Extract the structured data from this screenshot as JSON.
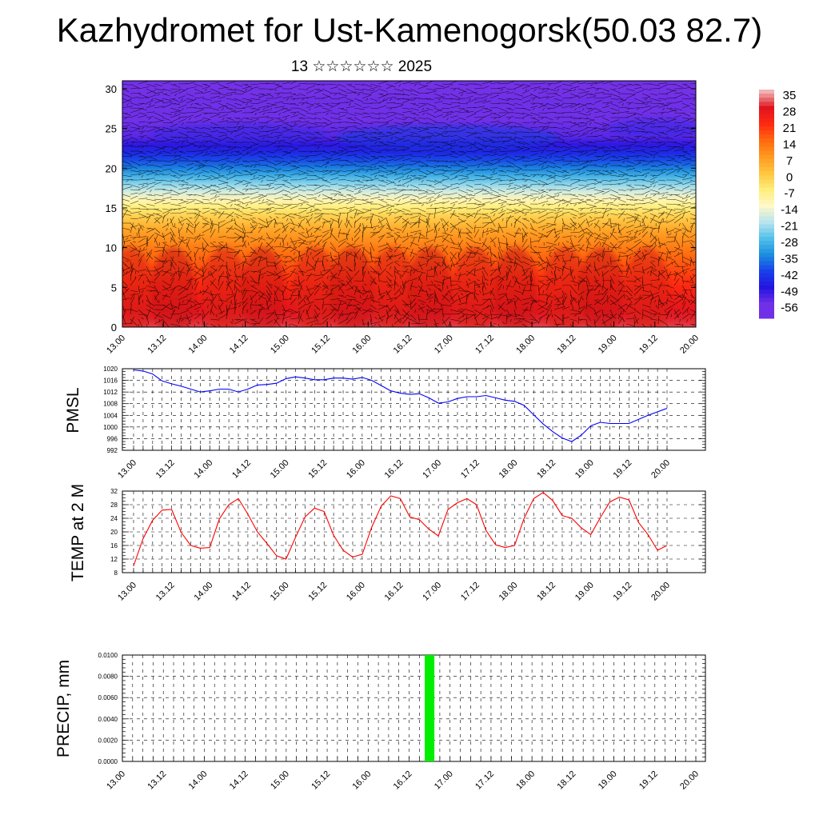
{
  "header": {
    "title": "Kazhydromet for Ust-Kamenogorsk(50.03 82.7)",
    "subtitle": "13 ☆☆☆☆☆☆ 2025"
  },
  "chart_data": [
    {
      "type": "heatmap",
      "title": "",
      "xlabel": "",
      "ylabel": "",
      "x_tick_labels": [
        "13.00",
        "13.12",
        "14.00",
        "14.12",
        "15.00",
        "15.12",
        "16.00",
        "16.12",
        "17.00",
        "17.12",
        "18.00",
        "18.12",
        "19.00",
        "19.12",
        "20.00"
      ],
      "y_ticks": [
        0,
        5,
        10,
        15,
        20,
        25,
        30
      ],
      "ylim": [
        0,
        31
      ],
      "overlay": "wind streamlines",
      "colorbar": {
        "labels": [
          "35",
          "28",
          "21",
          "14",
          "7",
          "0",
          "-7",
          "-14",
          "-21",
          "-28",
          "-35",
          "-42",
          "-49",
          "-56"
        ],
        "colors": [
          "#f0b2b2",
          "#e0141e",
          "#ff2a10",
          "#ff6a10",
          "#ff9a20",
          "#ffc640",
          "#ffee7a",
          "#fff8c8",
          "#b8e4ee",
          "#50c0ea",
          "#1c8cde",
          "#1840ea",
          "#2414e0",
          "#7030e8"
        ]
      },
      "profile_temperature": [
        {
          "h": 0,
          "t": 30
        },
        {
          "h": 3,
          "t": 26
        },
        {
          "h": 6,
          "t": 20
        },
        {
          "h": 9,
          "t": 14
        },
        {
          "h": 12,
          "t": 6
        },
        {
          "h": 14,
          "t": -2
        },
        {
          "h": 15,
          "t": -7
        },
        {
          "h": 16,
          "t": -12
        },
        {
          "h": 18,
          "t": -24
        },
        {
          "h": 20,
          "t": -36
        },
        {
          "h": 22,
          "t": -46
        },
        {
          "h": 24,
          "t": -54
        },
        {
          "h": 26,
          "t": -56
        },
        {
          "h": 28,
          "t": -58
        },
        {
          "h": 31,
          "t": -60
        }
      ]
    },
    {
      "type": "line",
      "title": "",
      "xlabel": "",
      "ylabel": "PMSL",
      "ylim": [
        992,
        1020
      ],
      "y_ticks": [
        992,
        996,
        1000,
        1004,
        1008,
        1012,
        1016,
        1020
      ],
      "x_tick_labels": [
        "13.00",
        "13.12",
        "14.00",
        "14.12",
        "15.00",
        "15.12",
        "16.00",
        "16.12",
        "17.00",
        "17.12",
        "18.00",
        "18.12",
        "19.00",
        "19.12",
        "20.00"
      ],
      "series": [
        {
          "color": "#0000ff",
          "values": [
            1019.6,
            1019.2,
            1018.2,
            1015.8,
            1014.8,
            1014.0,
            1013.0,
            1012.0,
            1012.4,
            1013.0,
            1013.0,
            1012.0,
            1013.0,
            1014.4,
            1014.6,
            1015.0,
            1016.6,
            1017.2,
            1016.8,
            1016.2,
            1016.2,
            1016.8,
            1016.8,
            1016.4,
            1017.0,
            1016.0,
            1014.2,
            1012.4,
            1011.6,
            1011.2,
            1011.4,
            1010.0,
            1008.2,
            1008.6,
            1009.8,
            1010.4,
            1010.4,
            1010.8,
            1010.0,
            1009.2,
            1008.8,
            1007.4,
            1004.2,
            1001.0,
            998.4,
            996.2,
            995.0,
            997.2,
            1000.4,
            1001.6,
            1001.2,
            1001.2,
            1001.2,
            1002.6,
            1004.0,
            1005.2,
            1006.4
          ]
        }
      ]
    },
    {
      "type": "line",
      "title": "",
      "xlabel": "",
      "ylabel": "TEMP at 2 M",
      "ylim": [
        8,
        32
      ],
      "y_ticks": [
        8,
        12,
        16,
        20,
        24,
        28,
        32
      ],
      "x_tick_labels": [
        "13.00",
        "13.12",
        "14.00",
        "14.12",
        "15.00",
        "15.12",
        "16.00",
        "16.12",
        "17.00",
        "17.12",
        "18.00",
        "18.12",
        "19.00",
        "19.12",
        "20.00"
      ],
      "series": [
        {
          "color": "#ff0000",
          "values": [
            10.0,
            18.0,
            23.4,
            26.4,
            26.6,
            19.8,
            16.0,
            15.2,
            15.4,
            23.8,
            28.0,
            29.8,
            25.2,
            20.0,
            16.6,
            13.0,
            12.0,
            18.4,
            24.4,
            27.0,
            26.0,
            19.0,
            14.6,
            12.6,
            13.4,
            21.4,
            27.6,
            30.6,
            29.8,
            24.4,
            23.6,
            20.8,
            18.8,
            26.6,
            28.6,
            29.8,
            28.0,
            20.4,
            16.2,
            15.4,
            16.0,
            24.0,
            29.8,
            31.6,
            29.2,
            24.8,
            24.0,
            21.2,
            19.2,
            24.2,
            28.8,
            30.2,
            29.4,
            22.8,
            19.2,
            14.6,
            16.0
          ]
        }
      ]
    },
    {
      "type": "bar",
      "title": "",
      "xlabel": "",
      "ylabel": "PRECIP, mm",
      "ylim": [
        0,
        0.01
      ],
      "y_tick_labels": [
        "0.0000",
        "0.0020",
        "0.0040",
        "0.0060",
        "0.0080",
        "0.0100"
      ],
      "x_tick_labels": [
        "13.00",
        "13.12",
        "14.00",
        "14.12",
        "15.00",
        "15.12",
        "16.00",
        "16.12",
        "17.00",
        "17.12",
        "18.00",
        "18.12",
        "19.00",
        "19.12",
        "20.00"
      ],
      "series": [
        {
          "color": "#00ee00",
          "bars": [
            {
              "x_hours": 90,
              "value": 0.01
            }
          ]
        }
      ]
    }
  ]
}
